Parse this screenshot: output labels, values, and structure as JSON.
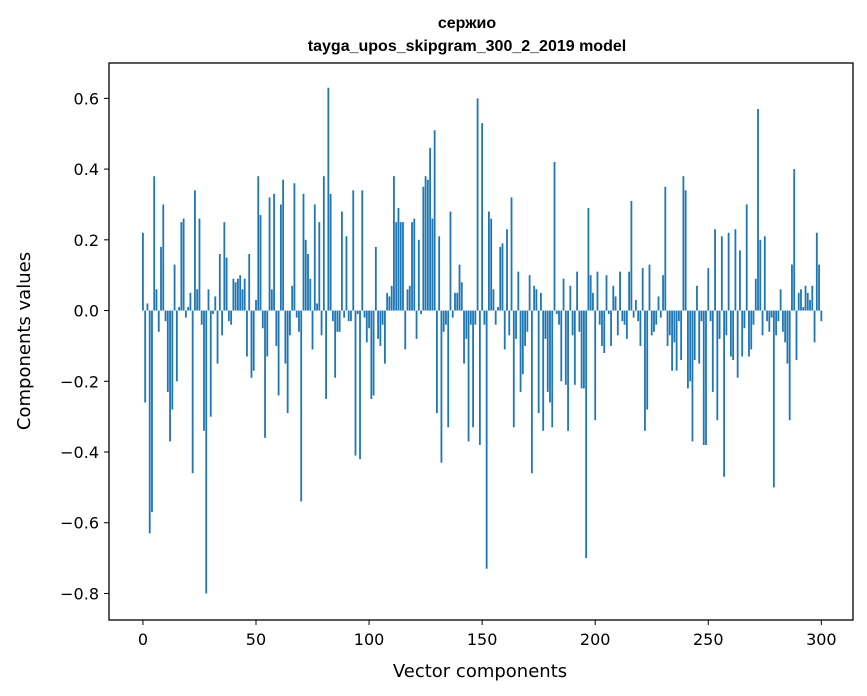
{
  "chart_data": {
    "type": "bar",
    "title_line1": "сержио",
    "title_line2": "tayga_upos_skipgram_300_2_2019 model",
    "xlabel": "Vector components",
    "ylabel": "Components values",
    "xlim": [
      -15,
      314
    ],
    "ylim": [
      -0.875,
      0.7
    ],
    "xticks": [
      0,
      50,
      100,
      150,
      200,
      250,
      300
    ],
    "yticks": [
      -0.8,
      -0.6,
      -0.4,
      -0.2,
      0.0,
      0.2,
      0.4,
      0.6
    ],
    "ytick_labels": [
      "−0.8",
      "−0.6",
      "−0.4",
      "−0.2",
      "0.0",
      "0.2",
      "0.4",
      "0.6"
    ],
    "bar_color": "#1f77b4",
    "values": [
      0.22,
      -0.26,
      0.02,
      -0.63,
      -0.57,
      0.38,
      0.06,
      -0.06,
      0.18,
      0.3,
      -0.03,
      -0.23,
      -0.37,
      -0.28,
      0.13,
      -0.2,
      0.01,
      0.25,
      0.26,
      -0.02,
      0.01,
      0.05,
      -0.46,
      0.34,
      0.06,
      0.26,
      -0.04,
      -0.34,
      -0.8,
      0.06,
      -0.3,
      -0.01,
      0.04,
      -0.15,
      0.16,
      -0.07,
      0.25,
      0.15,
      -0.03,
      -0.04,
      0.09,
      0.08,
      0.09,
      0.1,
      0.06,
      0.09,
      -0.13,
      0.16,
      -0.19,
      -0.17,
      0.03,
      0.38,
      0.27,
      -0.05,
      -0.36,
      -0.13,
      0.32,
      0.06,
      0.33,
      -0.1,
      -0.24,
      0.3,
      0.37,
      -0.15,
      -0.29,
      -0.07,
      0.07,
      0.36,
      -0.02,
      -0.06,
      -0.54,
      0.33,
      0.2,
      0.16,
      0.09,
      -0.11,
      0.3,
      0.02,
      0.25,
      -0.07,
      0.38,
      -0.25,
      0.63,
      0.33,
      -0.03,
      -0.19,
      -0.06,
      -0.06,
      0.28,
      -0.02,
      0.21,
      -0.03,
      -0.03,
      0.34,
      -0.41,
      -0.01,
      -0.42,
      0.34,
      -0.02,
      -0.09,
      -0.05,
      -0.25,
      -0.24,
      0.18,
      -0.08,
      -0.1,
      -0.04,
      -0.15,
      0.05,
      0.04,
      0.07,
      0.38,
      0.25,
      0.29,
      0.25,
      0.25,
      -0.11,
      0.06,
      0.07,
      0.25,
      0.26,
      -0.08,
      0.2,
      -0.01,
      0.35,
      0.38,
      0.37,
      0.46,
      0.26,
      0.51,
      -0.29,
      0.21,
      -0.43,
      -0.06,
      -0.04,
      -0.33,
      0.28,
      -0.02,
      0.05,
      0.05,
      0.13,
      0.08,
      -0.15,
      -0.08,
      -0.37,
      -0.04,
      -0.33,
      -0.04,
      0.6,
      -0.38,
      0.53,
      -0.04,
      -0.73,
      0.28,
      0.26,
      0.06,
      -0.04,
      0.01,
      0.18,
      0.19,
      -0.11,
      0.23,
      -0.07,
      0.32,
      -0.33,
      -0.08,
      0.11,
      -0.23,
      -0.18,
      -0.1,
      -0.06,
      0.1,
      -0.46,
      0.07,
      0.06,
      -0.29,
      0.05,
      -0.34,
      -0.08,
      -0.23,
      -0.26,
      -0.33,
      0.42,
      -0.01,
      -0.04,
      -0.2,
      0.09,
      -0.21,
      -0.34,
      0.07,
      -0.07,
      -0.21,
      0.11,
      -0.06,
      -0.22,
      -0.22,
      -0.7,
      0.29,
      0.1,
      0.05,
      -0.31,
      0.11,
      -0.04,
      -0.1,
      -0.12,
      0.1,
      -0.01,
      -0.1,
      0.07,
      0.04,
      -0.07,
      0.11,
      -0.03,
      -0.04,
      -0.08,
      0.11,
      0.31,
      -0.02,
      0.03,
      -0.03,
      -0.1,
      0.12,
      -0.34,
      -0.28,
      0.13,
      -0.07,
      -0.06,
      -0.04,
      0.04,
      -0.02,
      0.1,
      0.35,
      -0.1,
      -0.07,
      -0.17,
      -0.09,
      -0.17,
      -0.03,
      -0.14,
      0.38,
      0.34,
      -0.22,
      -0.2,
      -0.37,
      -0.14,
      0.07,
      -0.15,
      -0.03,
      -0.38,
      -0.38,
      0.12,
      -0.03,
      -0.23,
      0.23,
      -0.31,
      -0.08,
      0.21,
      -0.47,
      -0.07,
      0.22,
      -0.13,
      -0.14,
      0.23,
      -0.19,
      0.17,
      -0.13,
      -0.05,
      0.3,
      -0.13,
      -0.11,
      -0.04,
      0.09,
      0.57,
      0.2,
      -0.07,
      0.21,
      -0.03,
      -0.06,
      -0.02,
      -0.5,
      -0.07,
      -0.03,
      0.06,
      -0.06,
      -0.09,
      -0.15,
      -0.31,
      0.13,
      0.4,
      -0.14,
      0.05,
      0.06,
      0.01,
      0.07,
      0.05,
      0.03,
      0.07,
      -0.09,
      0.22,
      0.13,
      -0.03
    ]
  }
}
